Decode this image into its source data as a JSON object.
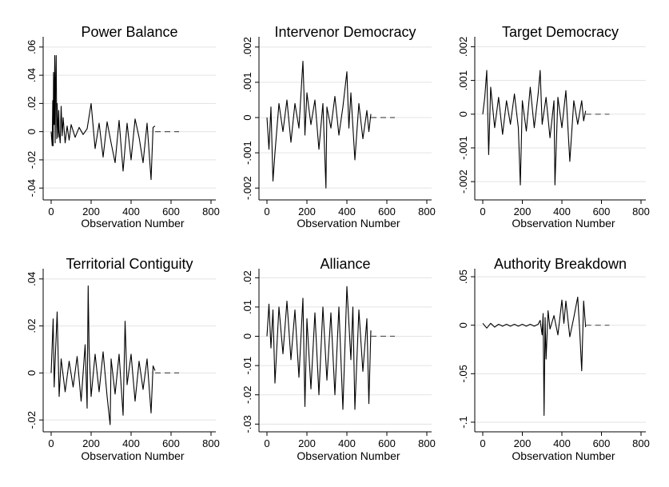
{
  "chart_data": [
    {
      "type": "line",
      "title": "Power Balance",
      "xlabel": "Observation Number",
      "xlim": [
        0,
        800
      ],
      "xticks": [
        "0",
        "200",
        "400",
        "600",
        "800"
      ],
      "ylim": [
        -0.045,
        0.065
      ],
      "yticks": [
        -0.04,
        -0.02,
        0,
        0.02,
        0.04,
        0.06
      ],
      "yticklabels": [
        "-.04",
        "-.02",
        "0",
        ".02",
        ".04",
        ".06"
      ],
      "grid": true,
      "series": [
        {
          "x": [
            0,
            5,
            8,
            10,
            12,
            15,
            18,
            20,
            22,
            25,
            28,
            30,
            32,
            35,
            38,
            40,
            45,
            50,
            55,
            60,
            70,
            80,
            90,
            100,
            120,
            140,
            160,
            180,
            200,
            220,
            240,
            260,
            280,
            300,
            320,
            340,
            360,
            380,
            400,
            420,
            440,
            460,
            480,
            500,
            510,
            520
          ],
          "y": [
            0,
            -0.01,
            0.022,
            -0.01,
            0.042,
            0.005,
            0.054,
            -0.008,
            0.03,
            0.054,
            -0.005,
            0.02,
            0.01,
            -0.004,
            0.015,
            0,
            -0.008,
            0.018,
            -0.003,
            0.01,
            -0.008,
            0.004,
            -0.006,
            0.005,
            -0.004,
            0.003,
            -0.002,
            0.002,
            0.02,
            -0.012,
            0.006,
            -0.018,
            0.007,
            -0.008,
            -0.022,
            0.008,
            -0.028,
            0.006,
            -0.02,
            0.009,
            -0.004,
            -0.022,
            0.006,
            -0.034,
            0.003,
            0.004
          ]
        },
        {
          "style": "dashed",
          "x": [
            520,
            640
          ],
          "y": [
            0,
            0
          ]
        }
      ]
    },
    {
      "type": "line",
      "title": "Intervenor Democracy",
      "xlabel": "Observation Number",
      "xlim": [
        0,
        800
      ],
      "xticks": [
        "0",
        "200",
        "400",
        "600",
        "800"
      ],
      "ylim": [
        -0.0022,
        0.0022
      ],
      "yticks": [
        -0.002,
        -0.001,
        0,
        0.001,
        0.002
      ],
      "yticklabels": [
        "-.002",
        "-.001",
        "0",
        ".001",
        ".002"
      ],
      "grid": true,
      "series": [
        {
          "x": [
            0,
            10,
            20,
            30,
            40,
            60,
            80,
            100,
            120,
            140,
            160,
            180,
            185,
            190,
            200,
            220,
            240,
            260,
            280,
            295,
            300,
            320,
            340,
            360,
            380,
            400,
            410,
            420,
            440,
            460,
            480,
            500,
            510,
            520
          ],
          "y": [
            0,
            -0.0009,
            0.0003,
            -0.0018,
            -0.001,
            0.0004,
            -0.0004,
            0.0005,
            -0.0007,
            0.0004,
            -0.0003,
            0.0016,
            0.0007,
            -0.0005,
            0.0007,
            -0.0002,
            0.0005,
            -0.0009,
            0.0004,
            -0.002,
            0.0003,
            -0.0003,
            0.0006,
            -0.0005,
            0.0003,
            0.0013,
            -0.0003,
            0.0007,
            -0.0012,
            0.0004,
            -0.0006,
            0.0002,
            -0.0004,
            0.0001
          ]
        },
        {
          "style": "dashed",
          "x": [
            520,
            640
          ],
          "y": [
            0,
            0
          ]
        }
      ]
    },
    {
      "type": "line",
      "title": "Target Democracy",
      "xlabel": "Observation Number",
      "xlim": [
        0,
        800
      ],
      "xticks": [
        "0",
        "200",
        "400",
        "600",
        "800"
      ],
      "ylim": [
        -0.0024,
        0.0022
      ],
      "yticks": [
        -0.002,
        -0.001,
        0,
        0.001,
        0.002
      ],
      "yticklabels": [
        "-.002",
        "-.001",
        "0",
        ".001",
        ".002"
      ],
      "grid": true,
      "series": [
        {
          "x": [
            0,
            10,
            20,
            30,
            40,
            60,
            80,
            100,
            120,
            140,
            160,
            180,
            190,
            200,
            220,
            240,
            260,
            280,
            290,
            300,
            320,
            340,
            360,
            365,
            380,
            400,
            420,
            440,
            460,
            480,
            500,
            510,
            520
          ],
          "y": [
            0,
            0.0005,
            0.0013,
            -0.0012,
            0.0008,
            -0.0004,
            0.0005,
            -0.0006,
            0.0004,
            -0.0003,
            0.0006,
            -0.0004,
            -0.0021,
            0.0004,
            -0.0005,
            0.0008,
            -0.0004,
            0.0006,
            0.0013,
            -0.0003,
            0.0005,
            -0.0007,
            0.0004,
            -0.0021,
            0.0005,
            -0.0004,
            0.0007,
            -0.0014,
            0.0004,
            -0.0003,
            0.0004,
            -0.0002,
            0.0001
          ]
        },
        {
          "style": "dashed",
          "x": [
            520,
            640
          ],
          "y": [
            0,
            0
          ]
        }
      ]
    },
    {
      "type": "line",
      "title": "Territorial Contiguity",
      "xlabel": "Observation Number",
      "xlim": [
        0,
        800
      ],
      "xticks": [
        "0",
        "200",
        "400",
        "600",
        "800"
      ],
      "ylim": [
        -0.023,
        0.043
      ],
      "yticks": [
        -0.02,
        0,
        0.02,
        0.04
      ],
      "yticklabels": [
        "-.02",
        "0",
        ".02",
        ".04"
      ],
      "grid": true,
      "series": [
        {
          "x": [
            0,
            10,
            15,
            20,
            30,
            40,
            50,
            70,
            90,
            110,
            130,
            150,
            170,
            180,
            185,
            190,
            200,
            220,
            240,
            260,
            280,
            295,
            300,
            320,
            340,
            360,
            370,
            380,
            400,
            420,
            440,
            460,
            480,
            500,
            510,
            520
          ],
          "y": [
            0,
            0.023,
            -0.006,
            0.005,
            0.026,
            -0.01,
            0.006,
            -0.008,
            0.005,
            -0.006,
            0.007,
            -0.012,
            0.012,
            -0.015,
            0.037,
            0.01,
            -0.01,
            0.008,
            -0.008,
            0.009,
            -0.01,
            -0.022,
            0.006,
            -0.009,
            0.008,
            -0.018,
            0.022,
            -0.005,
            0.008,
            -0.012,
            0.005,
            -0.007,
            0.006,
            -0.017,
            0.003,
            0.001
          ]
        },
        {
          "style": "dashed",
          "x": [
            520,
            640
          ],
          "y": [
            0,
            0
          ]
        }
      ]
    },
    {
      "type": "line",
      "title": "Alliance",
      "xlabel": "Observation Number",
      "xlim": [
        0,
        800
      ],
      "xticks": [
        "0",
        "200",
        "400",
        "600",
        "800"
      ],
      "ylim": [
        -0.031,
        0.022
      ],
      "yticks": [
        -0.03,
        -0.02,
        -0.01,
        0,
        0.01,
        0.02
      ],
      "yticklabels": [
        "-.03",
        "-.02",
        "-.01",
        "0",
        ".01",
        ".02"
      ],
      "grid": true,
      "series": [
        {
          "x": [
            0,
            10,
            20,
            30,
            40,
            60,
            80,
            100,
            120,
            140,
            160,
            180,
            190,
            200,
            220,
            240,
            260,
            280,
            300,
            320,
            340,
            360,
            380,
            400,
            420,
            430,
            440,
            460,
            480,
            500,
            510,
            520
          ],
          "y": [
            0,
            0.011,
            -0.004,
            0.009,
            -0.016,
            0.01,
            -0.006,
            0.012,
            -0.008,
            0.009,
            -0.014,
            0.013,
            -0.024,
            0.006,
            -0.018,
            0.008,
            -0.02,
            0.01,
            -0.015,
            0.008,
            -0.02,
            0.01,
            -0.025,
            0.017,
            -0.008,
            0.01,
            -0.025,
            0.009,
            -0.012,
            0.006,
            -0.023,
            0.002
          ]
        },
        {
          "style": "dashed",
          "x": [
            520,
            640
          ],
          "y": [
            0,
            0
          ]
        }
      ]
    },
    {
      "type": "line",
      "title": "Authority Breakdown",
      "xlabel": "Observation Number",
      "xlim": [
        0,
        800
      ],
      "xticks": [
        "0",
        "200",
        "400",
        "600",
        "800"
      ],
      "ylim": [
        -0.105,
        0.055
      ],
      "yticks": [
        -0.1,
        -0.05,
        0,
        0.05
      ],
      "yticklabels": [
        "-.1",
        "-.05",
        "0",
        ".05"
      ],
      "grid": true,
      "series": [
        {
          "x": [
            0,
            20,
            40,
            60,
            80,
            100,
            120,
            140,
            160,
            180,
            200,
            220,
            240,
            260,
            280,
            290,
            300,
            305,
            310,
            315,
            320,
            330,
            340,
            360,
            380,
            400,
            410,
            420,
            440,
            460,
            480,
            490,
            500,
            510,
            520
          ],
          "y": [
            0.002,
            -0.003,
            0.002,
            -0.002,
            0.001,
            -0.001,
            0.001,
            -0.001,
            0.001,
            -0.001,
            0.001,
            -0.001,
            0.001,
            -0.001,
            0.001,
            0.005,
            -0.01,
            0.012,
            -0.093,
            0.008,
            -0.035,
            0.015,
            -0.004,
            0.01,
            -0.01,
            0.026,
            0.002,
            0.025,
            -0.012,
            0.008,
            0.029,
            -0.006,
            -0.047,
            0.025,
            -0.002
          ]
        },
        {
          "style": "dashed",
          "x": [
            520,
            640
          ],
          "y": [
            0,
            0
          ]
        }
      ]
    }
  ]
}
